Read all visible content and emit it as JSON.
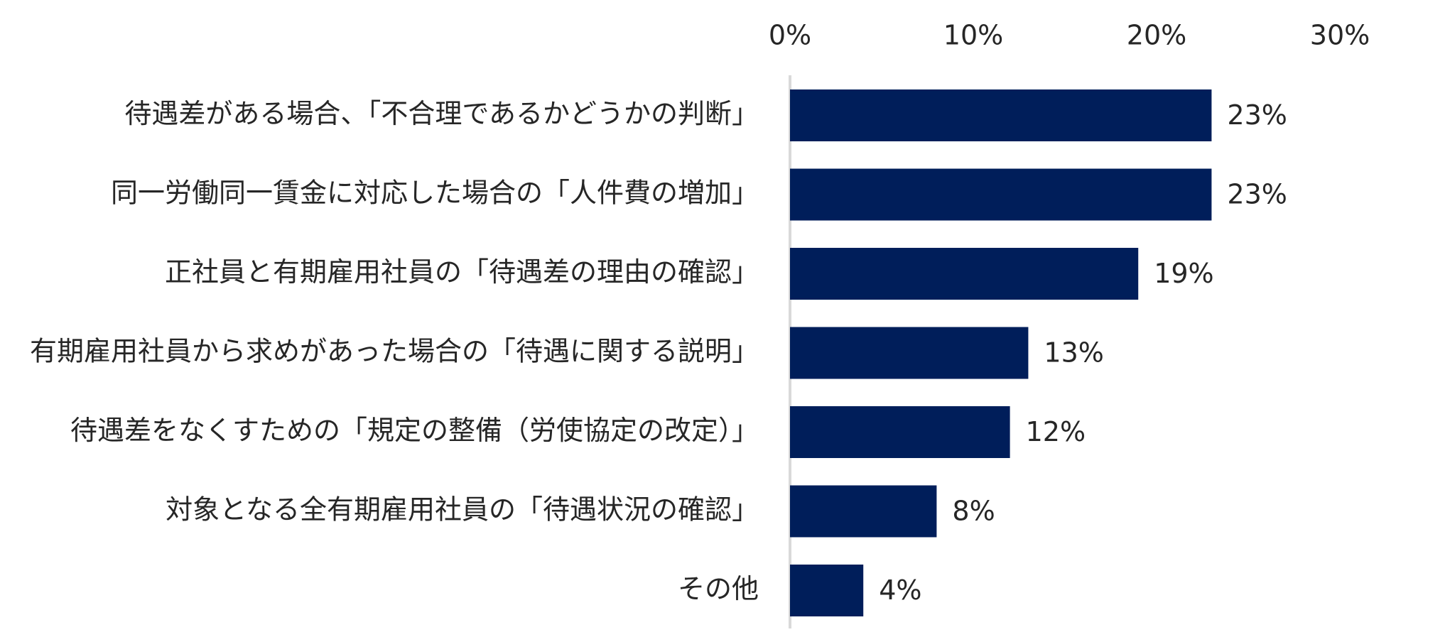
{
  "colors": {
    "bar": "#001e5a",
    "axis": "#d9d9d9",
    "text": "#262626"
  },
  "chart_data": {
    "type": "bar",
    "orientation": "horizontal",
    "categories": [
      "待遇差がある場合、「不合理であるかどうかの判断」",
      "同一労働同一賃金に対応した場合の「人件費の増加」",
      "正社員と有期雇用社員の「待遇差の理由の確認」",
      "有期雇用社員から求めがあった場合の「待遇に関する説明」",
      "待遇差をなくすための「規定の整備（労使協定の改定）」",
      "対象となる全有期雇用社員の「待遇状況の確認」",
      "その他"
    ],
    "values": [
      23,
      23,
      19,
      13,
      12,
      8,
      4
    ],
    "value_labels": [
      "23%",
      "23%",
      "19%",
      "13%",
      "12%",
      "8%",
      "4%"
    ],
    "x_ticks": [
      0,
      10,
      20,
      30
    ],
    "x_tick_labels": [
      "0%",
      "10%",
      "20%",
      "30%"
    ],
    "xlim": [
      0,
      30
    ],
    "axis_position": "top",
    "grid": false,
    "legend": "none"
  }
}
